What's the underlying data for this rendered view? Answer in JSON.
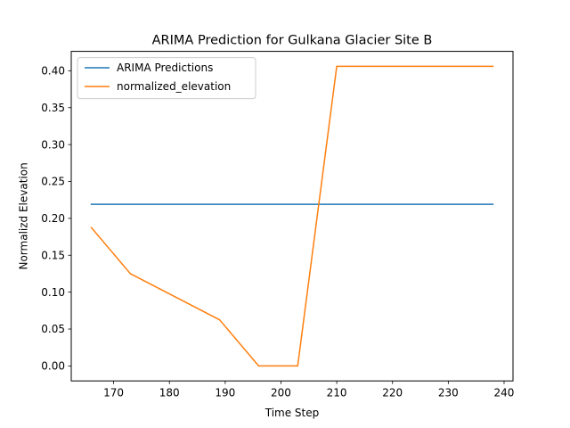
{
  "chart_data": {
    "type": "line",
    "title": "ARIMA Prediction for Gulkana Glacier Site B",
    "xlabel": "Time Step",
    "ylabel": "Normalizd Elevation",
    "xlim": [
      162.4,
      241.6
    ],
    "ylim": [
      -0.0203,
      0.4263
    ],
    "xticks": [
      170,
      180,
      190,
      200,
      210,
      220,
      230,
      240
    ],
    "yticks": [
      0.0,
      0.05,
      0.1,
      0.15,
      0.2,
      0.25,
      0.3,
      0.35,
      0.4
    ],
    "grid": false,
    "legend_position": "upper-left",
    "series": [
      {
        "name": "ARIMA Predictions",
        "color": "#1f77b4",
        "x": [
          166,
          238
        ],
        "y": [
          0.219,
          0.219
        ]
      },
      {
        "name": "normalized_elevation",
        "color": "#ff7f0e",
        "x": [
          166,
          173,
          189,
          196,
          203,
          210,
          238
        ],
        "y": [
          0.1875,
          0.125,
          0.0625,
          0.0,
          0.0,
          0.406,
          0.406
        ]
      }
    ]
  }
}
